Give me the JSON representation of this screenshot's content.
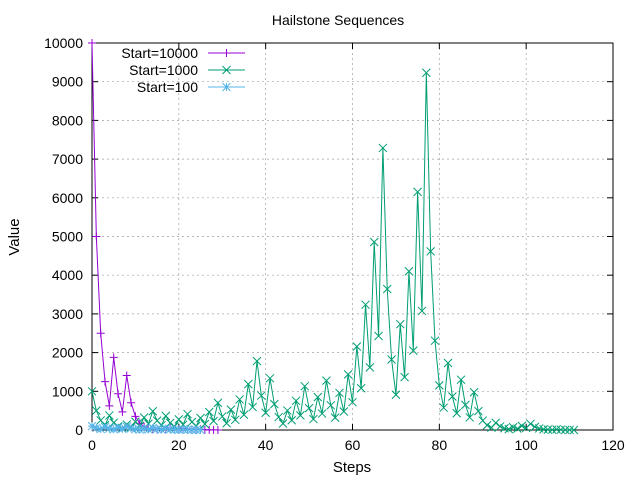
{
  "chart_data": {
    "type": "line",
    "title": "Hailstone Sequences",
    "xlabel": "Steps",
    "ylabel": "Value",
    "xlim": [
      0,
      120
    ],
    "ylim": [
      0,
      10000
    ],
    "xticks": [
      0,
      20,
      40,
      60,
      80,
      100,
      120
    ],
    "yticks": [
      0,
      1000,
      2000,
      3000,
      4000,
      5000,
      6000,
      7000,
      8000,
      9000,
      10000
    ],
    "grid": true,
    "legend_position": "top-left",
    "series": [
      {
        "name": "Start=10000",
        "color": "#9400d3",
        "marker": "plus",
        "values": [
          10000,
          5000,
          2500,
          1250,
          625,
          1876,
          938,
          469,
          1408,
          704,
          352,
          176,
          88,
          44,
          22,
          11,
          34,
          17,
          52,
          26,
          13,
          40,
          20,
          10,
          5,
          16,
          8,
          4,
          2,
          1
        ]
      },
      {
        "name": "Start=1000",
        "color": "#009e73",
        "marker": "cross",
        "values": [
          1000,
          500,
          250,
          125,
          376,
          188,
          94,
          47,
          142,
          71,
          214,
          107,
          322,
          161,
          484,
          242,
          121,
          364,
          182,
          91,
          274,
          137,
          412,
          206,
          103,
          310,
          155,
          466,
          233,
          700,
          350,
          175,
          526,
          263,
          790,
          395,
          1186,
          593,
          1780,
          890,
          445,
          1336,
          668,
          334,
          167,
          502,
          251,
          754,
          377,
          1132,
          566,
          283,
          850,
          425,
          1276,
          638,
          319,
          958,
          479,
          1438,
          719,
          2158,
          1079,
          3238,
          1619,
          4858,
          2429,
          7288,
          3644,
          1822,
          911,
          2734,
          1367,
          4102,
          2051,
          6154,
          3077,
          9232,
          4616,
          2308,
          1154,
          577,
          1732,
          866,
          433,
          1300,
          650,
          325,
          976,
          488,
          244,
          122,
          61,
          184,
          92,
          46,
          23,
          70,
          35,
          106,
          53,
          160,
          80,
          40,
          20,
          10,
          5,
          16,
          8,
          4,
          2,
          1
        ]
      },
      {
        "name": "Start=100",
        "color": "#56b4e9",
        "marker": "star",
        "values": [
          100,
          50,
          25,
          76,
          38,
          19,
          58,
          29,
          88,
          44,
          22,
          11,
          34,
          17,
          52,
          26,
          13,
          40,
          20,
          10,
          5,
          16,
          8,
          4,
          2,
          1
        ]
      }
    ]
  }
}
